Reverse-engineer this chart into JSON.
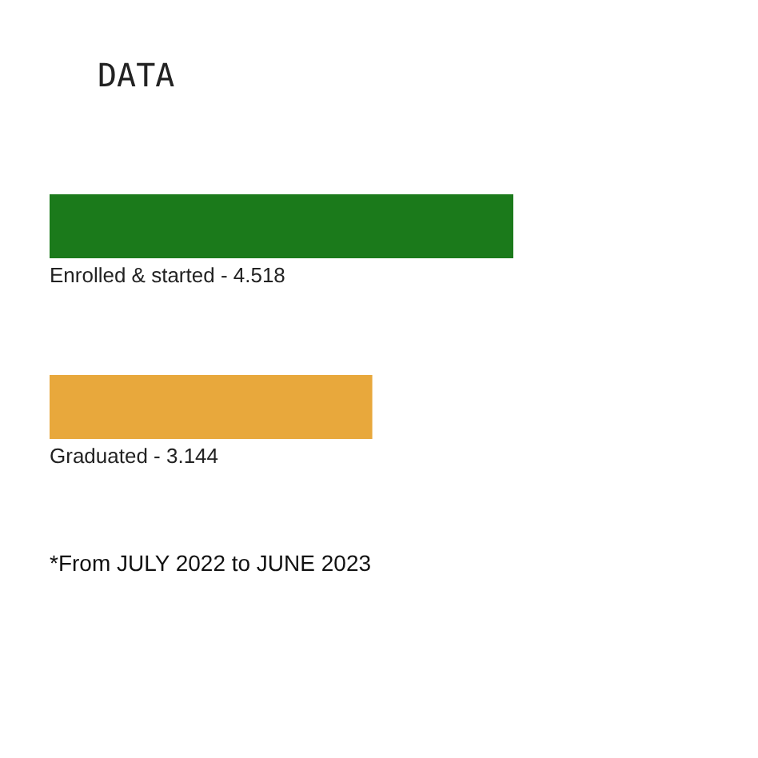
{
  "chart_data": {
    "type": "bar",
    "orientation": "horizontal",
    "title": "DATA",
    "categories": [
      "Enrolled & started -",
      "Graduated -"
    ],
    "values": [
      4.518,
      3.144
    ],
    "data_labels": true,
    "colors": [
      "#1b7a1b",
      "#e8a83c"
    ],
    "grid": false,
    "tick_labels": false,
    "annotations": [
      "*From JULY 2022 to JUNE 2023"
    ]
  }
}
